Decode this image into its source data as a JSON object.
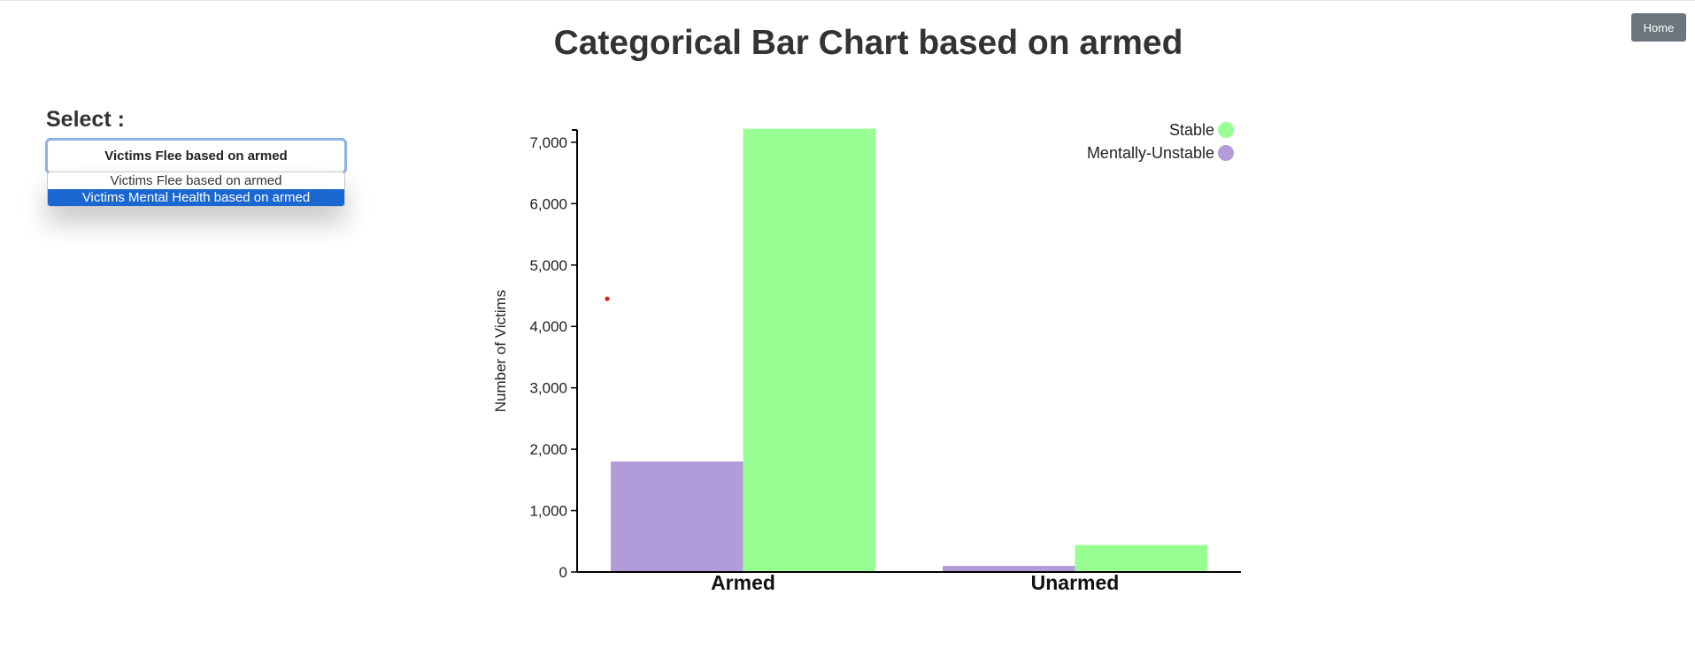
{
  "header": {
    "title": "Categorical Bar Chart based on armed",
    "home_label": "Home"
  },
  "selector": {
    "label": "Select :",
    "selected_value": "Victims Flee based on armed",
    "options": [
      "Victims Flee based on armed",
      "Victims Mental Health based on armed"
    ],
    "highlighted_index": 1
  },
  "colors": {
    "stable": "#98ff93",
    "mentally_unstable": "#b19cd9",
    "outlier_dot": "#e01b1b",
    "axis": "#000000",
    "home_button": "#6c757d",
    "selected_option": "#1a67d2"
  },
  "chart_data": {
    "type": "bar",
    "title": "Categorical Bar Chart based on armed",
    "xlabel": "",
    "ylabel": "Number of Victims",
    "ylim": [
      0,
      7200
    ],
    "yticks": [
      0,
      1000,
      2000,
      3000,
      4000,
      5000,
      6000,
      7000
    ],
    "ytick_labels": [
      "0",
      "1,000",
      "2,000",
      "3,000",
      "4,000",
      "5,000",
      "6,000",
      "7,000"
    ],
    "categories": [
      "Armed",
      "Unarmed"
    ],
    "series": [
      {
        "name": "Mentally-Unstable",
        "color": "#b19cd9",
        "values": [
          1800,
          100
        ]
      },
      {
        "name": "Stable",
        "color": "#98ff93",
        "values": [
          7220,
          440
        ]
      }
    ],
    "legend": [
      "Stable",
      "Mentally-Unstable"
    ],
    "legend_position": "top-right",
    "grid": false,
    "annotation_point": {
      "category": "Armed",
      "value": 4450
    }
  }
}
